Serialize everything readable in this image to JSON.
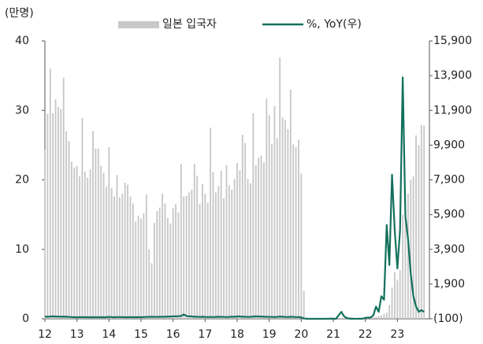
{
  "chart_data": {
    "type": "bar",
    "unit_label": "(만명)",
    "x": [
      12,
      12.083,
      12.167,
      12.25,
      12.333,
      12.417,
      12.5,
      12.583,
      12.667,
      12.75,
      12.833,
      12.917,
      13,
      13.083,
      13.167,
      13.25,
      13.333,
      13.417,
      13.5,
      13.583,
      13.667,
      13.75,
      13.833,
      13.917,
      14,
      14.083,
      14.167,
      14.25,
      14.333,
      14.417,
      14.5,
      14.583,
      14.667,
      14.75,
      14.833,
      14.917,
      15,
      15.083,
      15.167,
      15.25,
      15.333,
      15.417,
      15.5,
      15.583,
      15.667,
      15.75,
      15.833,
      15.917,
      16,
      16.083,
      16.167,
      16.25,
      16.333,
      16.417,
      16.5,
      16.583,
      16.667,
      16.75,
      16.833,
      16.917,
      17,
      17.083,
      17.167,
      17.25,
      17.333,
      17.417,
      17.5,
      17.583,
      17.667,
      17.75,
      17.833,
      17.917,
      18,
      18.083,
      18.167,
      18.25,
      18.333,
      18.417,
      18.5,
      18.583,
      18.667,
      18.75,
      18.833,
      18.917,
      19,
      19.083,
      19.167,
      19.25,
      19.333,
      19.417,
      19.5,
      19.583,
      19.667,
      19.75,
      19.833,
      19.917,
      20,
      20.083,
      20.167,
      20.25,
      20.333,
      20.417,
      20.5,
      20.583,
      20.667,
      20.75,
      20.833,
      20.917,
      21,
      21.083,
      21.167,
      21.25,
      21.333,
      21.417,
      21.5,
      21.583,
      21.667,
      21.75,
      21.833,
      21.917,
      22,
      22.083,
      22.167,
      22.25,
      22.333,
      22.417,
      22.5,
      22.583,
      22.667,
      22.75,
      22.833,
      22.917,
      23,
      23.083,
      23.167,
      23.25,
      23.333,
      23.417,
      23.5,
      23.583,
      23.667,
      23.75,
      23.833
    ],
    "series": [
      {
        "name": "일본 입국자",
        "type": "bar",
        "color": "#c8c8c8",
        "values": [
          24.4,
          29.5,
          36,
          29.6,
          31.6,
          30.5,
          30.2,
          34.7,
          27,
          25.6,
          22.6,
          21.8,
          22,
          20.5,
          28.9,
          21.2,
          20.3,
          21.5,
          27,
          24.5,
          24.5,
          22,
          21,
          19,
          24.7,
          18.8,
          17.6,
          20.7,
          17.5,
          18,
          19.6,
          19.3,
          17.6,
          16.6,
          14,
          14.8,
          14.4,
          15.2,
          17.9,
          10,
          8,
          13.8,
          15.5,
          16,
          18,
          16.6,
          14.5,
          13.7,
          15.9,
          16.5,
          15.3,
          22.3,
          17.6,
          17.7,
          18.2,
          18.6,
          22.3,
          20.6,
          16.5,
          19.4,
          18,
          16.7,
          27.5,
          21.1,
          18.2,
          19.1,
          21.3,
          17.3,
          22.1,
          19.2,
          18.6,
          20.1,
          22.4,
          21.4,
          26.5,
          25.3,
          20.1,
          19.5,
          29.6,
          22.1,
          23.2,
          23.5,
          22.5,
          31.7,
          29.3,
          25.2,
          30.6,
          26,
          37.6,
          29,
          28.6,
          27.3,
          33,
          25.1,
          24.7,
          25.8,
          20.9,
          4,
          0.2,
          0,
          0,
          0,
          0,
          0,
          0.1,
          0.1,
          0.2,
          0.3,
          0.2,
          0.1,
          0.1,
          0.1,
          0.1,
          0.1,
          0.2,
          0.2,
          0.1,
          0.1,
          0.1,
          0.1,
          0.1,
          0.1,
          0.1,
          0.2,
          0.3,
          0.4,
          0.5,
          0.7,
          0.9,
          2,
          4.5,
          6.7,
          5.6,
          7,
          15,
          15,
          18,
          20,
          20.5,
          26.4,
          25,
          27.9,
          27.8
        ]
      },
      {
        "name": "%, YoY(우)",
        "type": "line",
        "axis": "y2",
        "color": "#13705c",
        "values": [
          30,
          20,
          30,
          40,
          30,
          30,
          20,
          30,
          20,
          10,
          0,
          -10,
          -10,
          -10,
          0,
          -10,
          -10,
          -10,
          -10,
          -10,
          -10,
          -10,
          -10,
          -10,
          10,
          0,
          -10,
          0,
          0,
          0,
          -10,
          -10,
          0,
          -10,
          -10,
          0,
          -10,
          0,
          10,
          10,
          20,
          10,
          10,
          20,
          20,
          20,
          30,
          30,
          40,
          40,
          50,
          60,
          150,
          60,
          40,
          40,
          20,
          20,
          10,
          20,
          10,
          0,
          10,
          0,
          10,
          20,
          10,
          10,
          0,
          10,
          20,
          20,
          30,
          40,
          20,
          20,
          10,
          10,
          30,
          40,
          30,
          30,
          20,
          20,
          10,
          10,
          0,
          10,
          30,
          20,
          10,
          0,
          20,
          10,
          0,
          0,
          -15,
          -80,
          -98,
          -100,
          -100,
          -100,
          -100,
          -100,
          -99,
          -99,
          -98,
          -98,
          -99,
          -99,
          100,
          300,
          50,
          -50,
          -90,
          -95,
          -98,
          -97,
          -96,
          -95,
          -40,
          -30,
          -20,
          100,
          600,
          300,
          1200,
          1000,
          5300,
          3000,
          8200,
          5000,
          2800,
          5000,
          13800,
          5800,
          4500,
          2500,
          1200,
          600,
          300,
          400,
          300
        ]
      }
    ],
    "ylim": [
      0,
      40
    ],
    "yticks": [
      0,
      10,
      20,
      30,
      40
    ],
    "y2lim": [
      -100,
      15900
    ],
    "y2ticks": [
      {
        "value": -100,
        "label": "(100)"
      },
      {
        "value": 1900,
        "label": "1,900"
      },
      {
        "value": 3900,
        "label": "3,900"
      },
      {
        "value": 5900,
        "label": "5,900"
      },
      {
        "value": 7900,
        "label": "7,900"
      },
      {
        "value": 9900,
        "label": "9,900"
      },
      {
        "value": 11900,
        "label": "11,900"
      },
      {
        "value": 13900,
        "label": "13,900"
      },
      {
        "value": 15900,
        "label": "15,900"
      }
    ],
    "xlim": [
      12,
      24
    ],
    "xticks": [
      12,
      13,
      14,
      15,
      16,
      17,
      18,
      19,
      20,
      21,
      22,
      23
    ]
  }
}
